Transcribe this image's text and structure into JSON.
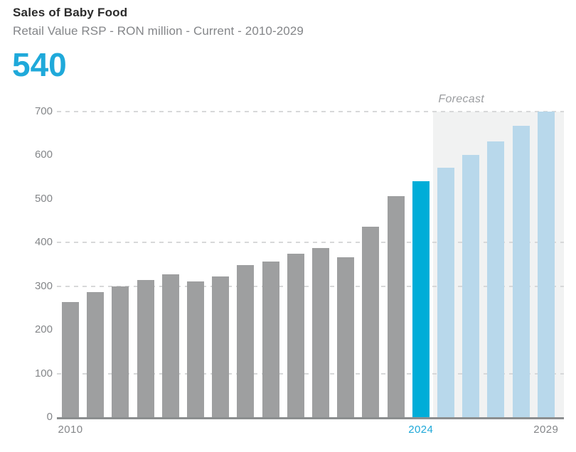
{
  "header": {
    "title": "Sales of Baby Food",
    "subtitle": "Retail Value RSP - RON million - Current - 2010-2029",
    "headline_value": "540"
  },
  "chart_data": {
    "type": "bar",
    "title": "Sales of Baby Food",
    "subtitle": "Retail Value RSP - RON million - Current - 2010-2029",
    "categories": [
      "2010",
      "2011",
      "2012",
      "2013",
      "2014",
      "2015",
      "2016",
      "2017",
      "2018",
      "2019",
      "2020",
      "2021",
      "2022",
      "2023",
      "2024",
      "2025",
      "2026",
      "2027",
      "2028",
      "2029"
    ],
    "values": [
      263,
      286,
      299,
      314,
      328,
      311,
      322,
      348,
      356,
      374,
      387,
      367,
      437,
      507,
      540,
      572,
      600,
      632,
      667,
      700
    ],
    "current_year": "2024",
    "current_year_value": 540,
    "forecast_start_year": "2025",
    "forecast_label": "Forecast",
    "ylim": [
      0,
      700
    ],
    "yticks": [
      0,
      100,
      200,
      300,
      400,
      500,
      600,
      700
    ],
    "gridline_values": [
      100,
      300,
      400,
      700
    ],
    "x_axis_labels_shown": [
      "2010",
      "2024",
      "2029"
    ],
    "grid_style": "dashed",
    "legend": "none",
    "colors": {
      "historical_bar": "#9e9fa0",
      "current_bar": "#00add8",
      "forecast_bar": "#b8d8eb",
      "forecast_band": "#f1f2f2",
      "accent_text": "#1fa8d8",
      "title_text": "#2b2b2b",
      "axis_text": "#848689",
      "forecast_label_text": "#9b9da0",
      "gridline": "#d7d8d9",
      "axis_line": "#8b8e8f"
    }
  }
}
